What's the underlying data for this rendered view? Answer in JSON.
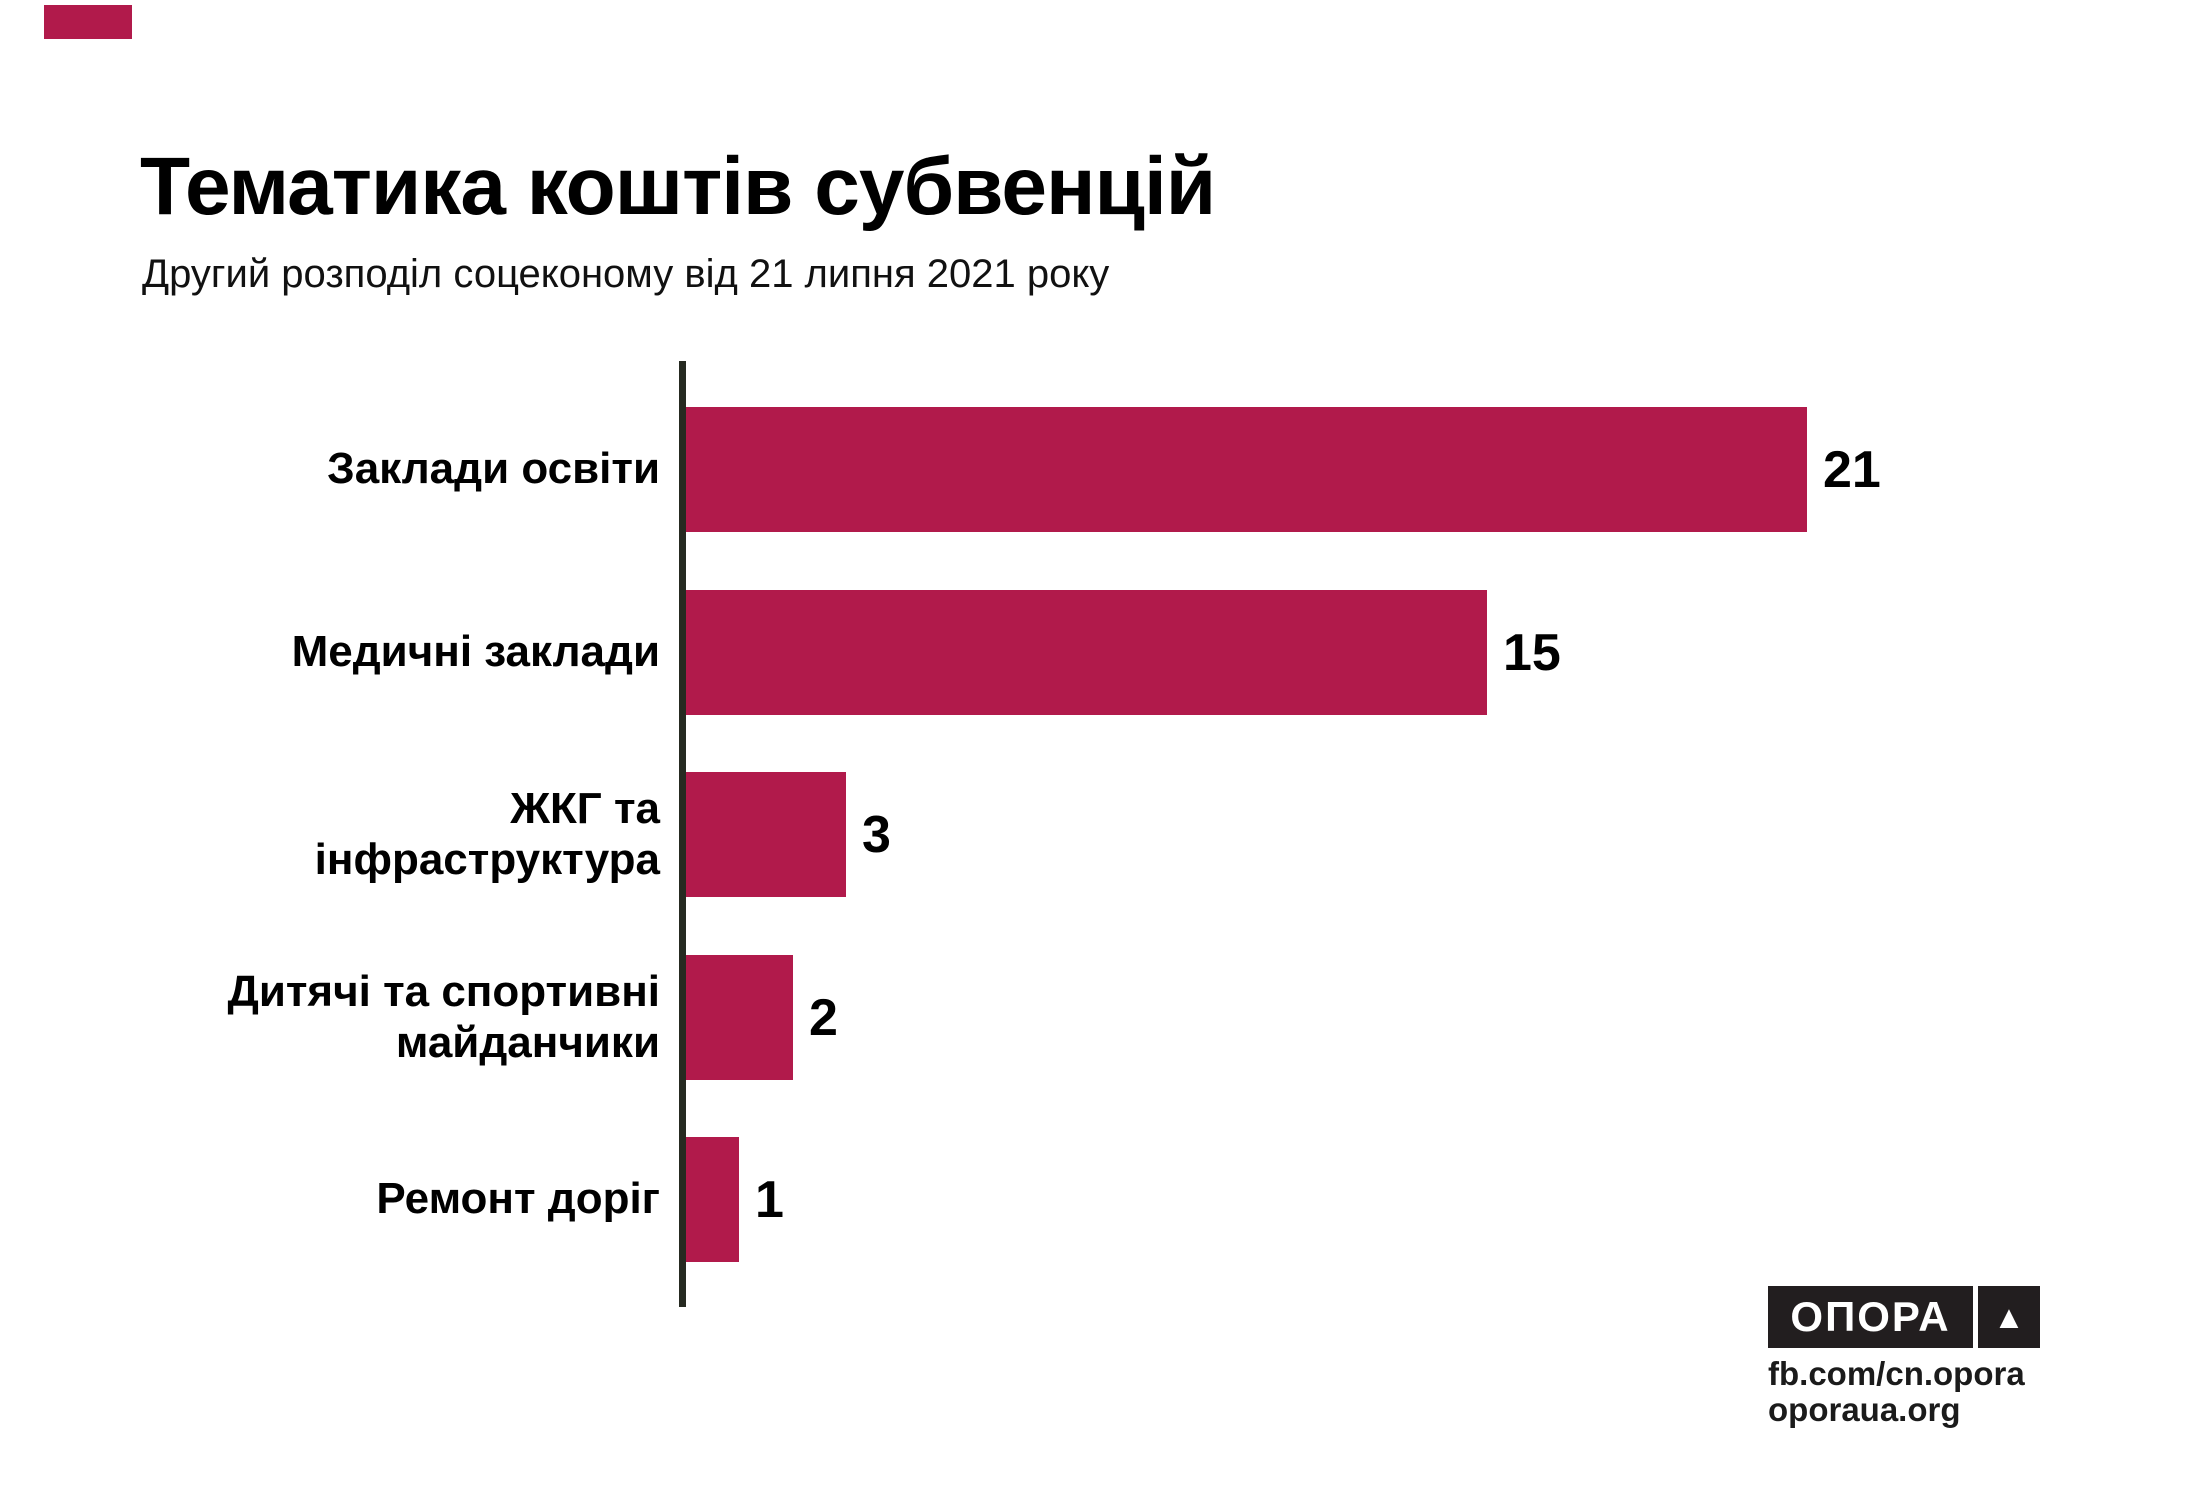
{
  "chart_data": {
    "type": "bar",
    "orientation": "horizontal",
    "title": "Тематика коштів субвенцій",
    "subtitle": "Другий розподіл соцеконому від 21 липня 2021 року",
    "categories": [
      "Заклади освіти",
      "Медичні заклади",
      "ЖКГ та інфраструктура",
      "Дитячі та спортивні майданчики",
      "Ремонт доріг"
    ],
    "values": [
      21,
      15,
      3,
      2,
      1
    ],
    "label_lines": [
      [
        "Заклади освіти"
      ],
      [
        "Медичні заклади"
      ],
      [
        "ЖКГ та",
        "інфраструктура"
      ],
      [
        "Дитячі та спортивні",
        "майданчики"
      ],
      [
        "Ремонт доріг"
      ]
    ],
    "xlim": [
      0,
      21
    ],
    "grid": false,
    "legend": false,
    "value_labels_shown": true,
    "bar_color": "#b11a4b",
    "axis_color": "#262a21",
    "value_color": "#000000"
  },
  "decor": {
    "corner_accent_color": "#b11a4b"
  },
  "branding": {
    "logo_text": "ОПОРА",
    "logo_mark_glyph": "▲",
    "logo_bg": "#221e1f",
    "fb_url": "fb.com/cn.opora",
    "site_url": "oporaua.org"
  }
}
